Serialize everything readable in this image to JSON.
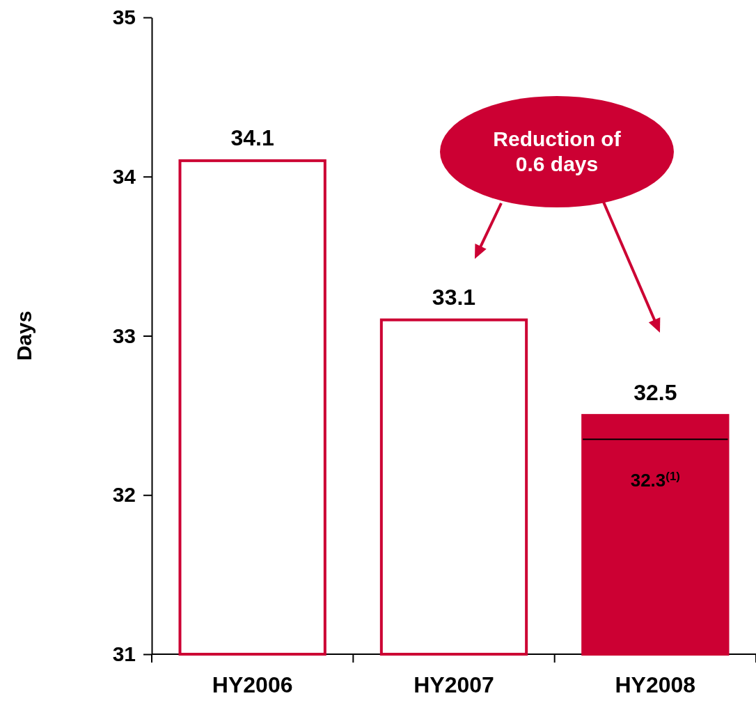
{
  "chart_data": {
    "type": "bar",
    "ylabel": "Days",
    "categories": [
      "HY2006",
      "HY2007",
      "HY2008"
    ],
    "series": [
      {
        "color": "#cc0033",
        "colors": [
          "#ffffff",
          "#ffffff",
          "#cc0033"
        ],
        "values": [
          34.1,
          33.1,
          32.5
        ]
      }
    ],
    "ylim": [
      31,
      35
    ],
    "yticks": [
      31,
      32,
      33,
      34,
      35
    ],
    "grid": false,
    "data_labels": true,
    "ref_lines": [
      {
        "axis": "y",
        "value": 32.35,
        "label": "32.3$^{(1)}$",
        "color": "#000000"
      }
    ],
    "annotations": [
      "Reduction of 0.6 days"
    ]
  }
}
